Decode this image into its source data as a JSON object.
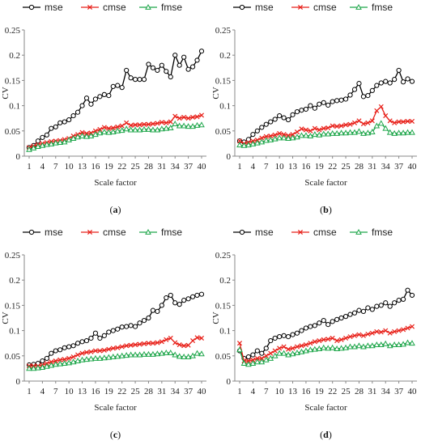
{
  "chart_data": [
    {
      "type": "line",
      "panel_label": "(a)",
      "panel_letter": "a",
      "xlabel": "Scale factor",
      "ylabel": "CV",
      "ylim": [
        0,
        0.25
      ],
      "y_ticks": [
        "0",
        "0.05",
        "0.1",
        "0.15",
        "0.2",
        "0.25"
      ],
      "x_ticks": [
        "1",
        "4",
        "7",
        "10",
        "13",
        "16",
        "19",
        "22",
        "25",
        "28",
        "31",
        "34",
        "37",
        "40"
      ],
      "legend": {
        "placement": "top-left"
      },
      "x": [
        1,
        2,
        3,
        4,
        5,
        6,
        7,
        8,
        9,
        10,
        11,
        12,
        13,
        14,
        15,
        16,
        17,
        18,
        19,
        20,
        21,
        22,
        23,
        24,
        25,
        26,
        27,
        28,
        29,
        30,
        31,
        32,
        33,
        34,
        35,
        36,
        37,
        38,
        39,
        40
      ],
      "series": [
        {
          "name": "mse",
          "color": "#000000",
          "marker": "circle",
          "values": [
            0.017,
            0.021,
            0.03,
            0.037,
            0.042,
            0.055,
            0.058,
            0.066,
            0.068,
            0.072,
            0.08,
            0.087,
            0.1,
            0.115,
            0.103,
            0.113,
            0.118,
            0.122,
            0.12,
            0.138,
            0.14,
            0.136,
            0.17,
            0.155,
            0.152,
            0.152,
            0.152,
            0.182,
            0.175,
            0.17,
            0.18,
            0.168,
            0.157,
            0.2,
            0.18,
            0.196,
            0.172,
            0.177,
            0.19,
            0.208
          ]
        },
        {
          "name": "cmse",
          "color": "#e8211a",
          "marker": "x",
          "values": [
            0.017,
            0.02,
            0.023,
            0.025,
            0.027,
            0.029,
            0.03,
            0.031,
            0.033,
            0.035,
            0.04,
            0.043,
            0.047,
            0.045,
            0.046,
            0.05,
            0.053,
            0.057,
            0.055,
            0.056,
            0.058,
            0.06,
            0.066,
            0.061,
            0.062,
            0.062,
            0.063,
            0.063,
            0.064,
            0.065,
            0.067,
            0.066,
            0.068,
            0.079,
            0.075,
            0.077,
            0.075,
            0.077,
            0.078,
            0.081
          ]
        },
        {
          "name": "fmse",
          "color": "#1ea64a",
          "marker": "triangle",
          "values": [
            0.013,
            0.016,
            0.019,
            0.021,
            0.023,
            0.024,
            0.026,
            0.027,
            0.028,
            0.032,
            0.035,
            0.038,
            0.04,
            0.039,
            0.04,
            0.043,
            0.046,
            0.048,
            0.047,
            0.048,
            0.05,
            0.051,
            0.054,
            0.052,
            0.052,
            0.052,
            0.053,
            0.053,
            0.052,
            0.052,
            0.054,
            0.055,
            0.056,
            0.064,
            0.06,
            0.06,
            0.059,
            0.059,
            0.061,
            0.062
          ]
        }
      ]
    },
    {
      "type": "line",
      "panel_label": "(b)",
      "panel_letter": "b",
      "xlabel": "Scale factor",
      "ylabel": "CV",
      "ylim": [
        0,
        0.25
      ],
      "y_ticks": [
        "0",
        "0.05",
        "0.1",
        "0.15",
        "0.2",
        "0.25"
      ],
      "x_ticks": [
        "1",
        "4",
        "7",
        "10",
        "13",
        "16",
        "19",
        "22",
        "25",
        "28",
        "31",
        "34",
        "37",
        "40"
      ],
      "legend": {
        "placement": "top-left"
      },
      "x": [
        1,
        2,
        3,
        4,
        5,
        6,
        7,
        8,
        9,
        10,
        11,
        12,
        13,
        14,
        15,
        16,
        17,
        18,
        19,
        20,
        21,
        22,
        23,
        24,
        25,
        26,
        27,
        28,
        29,
        30,
        31,
        32,
        33,
        34,
        35,
        36,
        37,
        38,
        39,
        40
      ],
      "series": [
        {
          "name": "mse",
          "color": "#000000",
          "marker": "circle",
          "values": [
            0.03,
            0.028,
            0.033,
            0.043,
            0.05,
            0.057,
            0.063,
            0.068,
            0.073,
            0.08,
            0.076,
            0.072,
            0.082,
            0.088,
            0.091,
            0.093,
            0.1,
            0.095,
            0.103,
            0.106,
            0.101,
            0.108,
            0.11,
            0.111,
            0.113,
            0.121,
            0.132,
            0.144,
            0.118,
            0.12,
            0.13,
            0.14,
            0.145,
            0.148,
            0.145,
            0.152,
            0.17,
            0.147,
            0.153,
            0.148
          ]
        },
        {
          "name": "cmse",
          "color": "#e8211a",
          "marker": "x",
          "values": [
            0.03,
            0.025,
            0.027,
            0.03,
            0.032,
            0.036,
            0.039,
            0.04,
            0.042,
            0.045,
            0.043,
            0.041,
            0.043,
            0.048,
            0.054,
            0.052,
            0.05,
            0.055,
            0.052,
            0.055,
            0.056,
            0.06,
            0.059,
            0.06,
            0.062,
            0.063,
            0.066,
            0.07,
            0.064,
            0.066,
            0.07,
            0.09,
            0.098,
            0.08,
            0.07,
            0.066,
            0.068,
            0.068,
            0.069,
            0.069
          ]
        },
        {
          "name": "fmse",
          "color": "#1ea64a",
          "marker": "triangle",
          "values": [
            0.022,
            0.021,
            0.022,
            0.024,
            0.026,
            0.028,
            0.031,
            0.032,
            0.034,
            0.036,
            0.036,
            0.035,
            0.036,
            0.038,
            0.041,
            0.041,
            0.04,
            0.043,
            0.042,
            0.044,
            0.044,
            0.045,
            0.045,
            0.046,
            0.046,
            0.047,
            0.047,
            0.049,
            0.045,
            0.046,
            0.048,
            0.06,
            0.065,
            0.055,
            0.047,
            0.045,
            0.046,
            0.046,
            0.047,
            0.047
          ]
        }
      ]
    },
    {
      "type": "line",
      "panel_label": "(c)",
      "panel_letter": "c",
      "xlabel": "Scale factor",
      "ylabel": "CV",
      "ylim": [
        0,
        0.25
      ],
      "y_ticks": [
        "0",
        "0.05",
        "0.1",
        "0.15",
        "0.2",
        "0.25"
      ],
      "x_ticks": [
        "1",
        "4",
        "7",
        "10",
        "13",
        "16",
        "19",
        "22",
        "25",
        "28",
        "31",
        "34",
        "37",
        "40"
      ],
      "legend": {
        "placement": "top-left"
      },
      "x": [
        1,
        2,
        3,
        4,
        5,
        6,
        7,
        8,
        9,
        10,
        11,
        12,
        13,
        14,
        15,
        16,
        17,
        18,
        19,
        20,
        21,
        22,
        23,
        24,
        25,
        26,
        27,
        28,
        29,
        30,
        31,
        32,
        33,
        34,
        35,
        36,
        37,
        38,
        39,
        40
      ],
      "series": [
        {
          "name": "mse",
          "color": "#000000",
          "marker": "circle",
          "values": [
            0.032,
            0.033,
            0.035,
            0.04,
            0.045,
            0.055,
            0.06,
            0.062,
            0.066,
            0.068,
            0.07,
            0.075,
            0.078,
            0.08,
            0.085,
            0.095,
            0.085,
            0.09,
            0.097,
            0.1,
            0.103,
            0.107,
            0.108,
            0.11,
            0.108,
            0.115,
            0.12,
            0.125,
            0.14,
            0.138,
            0.15,
            0.165,
            0.17,
            0.155,
            0.152,
            0.16,
            0.163,
            0.167,
            0.17,
            0.172
          ]
        },
        {
          "name": "cmse",
          "color": "#e8211a",
          "marker": "x",
          "values": [
            0.03,
            0.03,
            0.03,
            0.032,
            0.035,
            0.038,
            0.04,
            0.042,
            0.043,
            0.045,
            0.048,
            0.052,
            0.055,
            0.057,
            0.058,
            0.06,
            0.06,
            0.061,
            0.063,
            0.065,
            0.066,
            0.068,
            0.07,
            0.071,
            0.072,
            0.073,
            0.074,
            0.075,
            0.075,
            0.076,
            0.078,
            0.082,
            0.085,
            0.076,
            0.072,
            0.07,
            0.071,
            0.08,
            0.086,
            0.085
          ]
        },
        {
          "name": "fmse",
          "color": "#1ea64a",
          "marker": "triangle",
          "values": [
            0.025,
            0.025,
            0.026,
            0.027,
            0.029,
            0.031,
            0.033,
            0.034,
            0.035,
            0.036,
            0.038,
            0.04,
            0.042,
            0.043,
            0.044,
            0.045,
            0.045,
            0.046,
            0.047,
            0.048,
            0.049,
            0.05,
            0.051,
            0.052,
            0.052,
            0.052,
            0.053,
            0.053,
            0.053,
            0.054,
            0.055,
            0.056,
            0.056,
            0.052,
            0.049,
            0.048,
            0.048,
            0.05,
            0.055,
            0.054
          ]
        }
      ]
    },
    {
      "type": "line",
      "panel_label": "(d)",
      "panel_letter": "d",
      "xlabel": "Scale factor",
      "ylabel": "CV",
      "ylim": [
        0,
        0.25
      ],
      "y_ticks": [
        "0",
        "0.05",
        "0.1",
        "0.15",
        "0.2",
        "0.25"
      ],
      "x_ticks": [
        "1",
        "4",
        "7",
        "10",
        "13",
        "16",
        "19",
        "22",
        "25",
        "28",
        "31",
        "34",
        "37",
        "40"
      ],
      "legend": {
        "placement": "top-left"
      },
      "x": [
        1,
        2,
        3,
        4,
        5,
        6,
        7,
        8,
        9,
        10,
        11,
        12,
        13,
        14,
        15,
        16,
        17,
        18,
        19,
        20,
        21,
        22,
        23,
        24,
        25,
        26,
        27,
        28,
        29,
        30,
        31,
        32,
        33,
        34,
        35,
        36,
        37,
        38,
        39,
        40
      ],
      "series": [
        {
          "name": "mse",
          "color": "#000000",
          "marker": "circle",
          "values": [
            0.06,
            0.045,
            0.048,
            0.052,
            0.06,
            0.055,
            0.065,
            0.08,
            0.085,
            0.088,
            0.09,
            0.088,
            0.092,
            0.095,
            0.1,
            0.105,
            0.108,
            0.11,
            0.115,
            0.12,
            0.112,
            0.118,
            0.122,
            0.125,
            0.128,
            0.132,
            0.135,
            0.14,
            0.138,
            0.145,
            0.142,
            0.148,
            0.15,
            0.155,
            0.148,
            0.155,
            0.16,
            0.162,
            0.18,
            0.17
          ]
        },
        {
          "name": "cmse",
          "color": "#e8211a",
          "marker": "x",
          "values": [
            0.075,
            0.04,
            0.04,
            0.042,
            0.045,
            0.045,
            0.05,
            0.055,
            0.06,
            0.065,
            0.068,
            0.063,
            0.065,
            0.068,
            0.07,
            0.072,
            0.075,
            0.078,
            0.08,
            0.082,
            0.083,
            0.085,
            0.08,
            0.082,
            0.085,
            0.088,
            0.09,
            0.092,
            0.09,
            0.093,
            0.095,
            0.098,
            0.097,
            0.1,
            0.095,
            0.098,
            0.1,
            0.102,
            0.105,
            0.108
          ]
        },
        {
          "name": "fmse",
          "color": "#1ea64a",
          "marker": "triangle",
          "values": [
            0.062,
            0.035,
            0.033,
            0.035,
            0.038,
            0.038,
            0.042,
            0.045,
            0.05,
            0.055,
            0.055,
            0.052,
            0.054,
            0.056,
            0.058,
            0.06,
            0.062,
            0.063,
            0.064,
            0.066,
            0.065,
            0.066,
            0.064,
            0.065,
            0.066,
            0.068,
            0.068,
            0.07,
            0.068,
            0.07,
            0.07,
            0.072,
            0.072,
            0.074,
            0.07,
            0.072,
            0.072,
            0.073,
            0.076,
            0.075
          ]
        }
      ]
    }
  ]
}
